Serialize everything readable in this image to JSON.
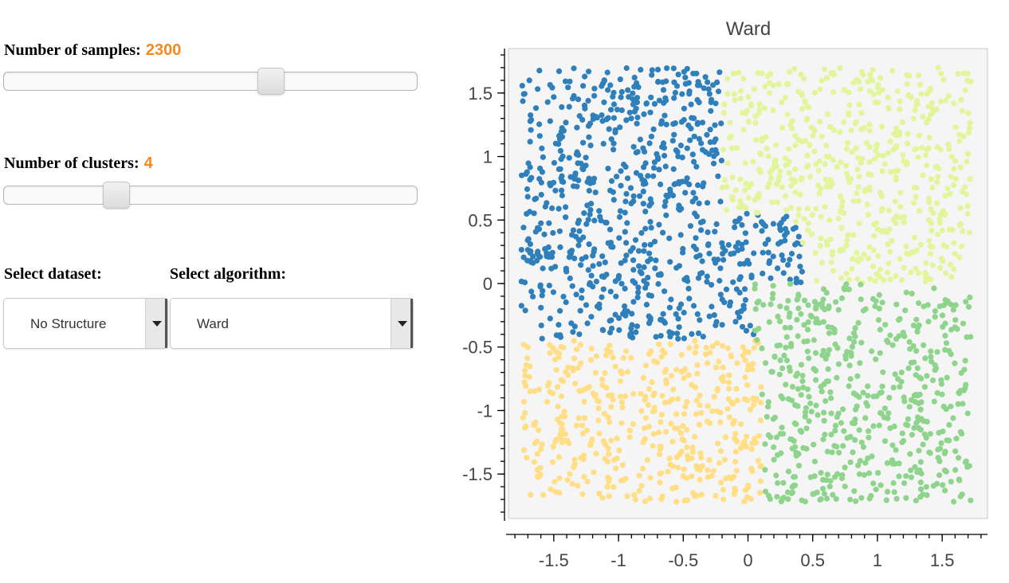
{
  "controls": {
    "samples": {
      "label": "Number of samples:",
      "value": "2300",
      "fraction": 0.655
    },
    "clusters": {
      "label": "Number of clusters:",
      "value": "4",
      "fraction": 0.255
    },
    "dataset": {
      "label": "Select dataset:",
      "selected": "No Structure"
    },
    "algorithm": {
      "label": "Select algorithm:",
      "selected": "Ward"
    }
  },
  "colors": {
    "accent_value": "#f48a1c",
    "plot_background": "#f5f5f5",
    "cluster_blue": "#2f7fba",
    "cluster_lime": "#e3f59a",
    "cluster_green": "#8fd48c",
    "cluster_yellow": "#ffde85"
  },
  "chart_data": {
    "type": "scatter",
    "title": "Ward",
    "xlim": [
      -1.85,
      1.85
    ],
    "ylim": [
      -1.85,
      1.85
    ],
    "x_ticks": [
      -1.5,
      -1,
      -0.5,
      0,
      0.5,
      1,
      1.5
    ],
    "y_ticks": [
      -1.5,
      -1,
      -0.5,
      0,
      0.5,
      1,
      1.5
    ],
    "x_tick_labels": [
      "-1.5",
      "-1",
      "-0.5",
      "0",
      "0.5",
      "1",
      "1.5"
    ],
    "y_tick_labels": [
      "-1.5",
      "-1",
      "-0.5",
      "0",
      "0.5",
      "1",
      "1.5"
    ],
    "grid": false,
    "n_points": 2300,
    "clusters": [
      {
        "color": "#2f7fba",
        "approx_region": "upper-left, extends to x≈0.5 around y 0 to 0.6",
        "x_range": [
          -1.75,
          0.5
        ],
        "y_range": [
          -0.6,
          1.7
        ]
      },
      {
        "color": "#e3f59a",
        "approx_region": "upper-right",
        "x_range": [
          -0.25,
          1.72
        ],
        "y_range": [
          0.0,
          1.7
        ]
      },
      {
        "color": "#8fd48c",
        "approx_region": "lower-right",
        "x_range": [
          0.0,
          1.72
        ],
        "y_range": [
          -1.72,
          0.05
        ]
      },
      {
        "color": "#ffde85",
        "approx_region": "lower-left",
        "x_range": [
          -1.75,
          0.15
        ],
        "y_range": [
          -1.72,
          -0.35
        ]
      }
    ]
  }
}
